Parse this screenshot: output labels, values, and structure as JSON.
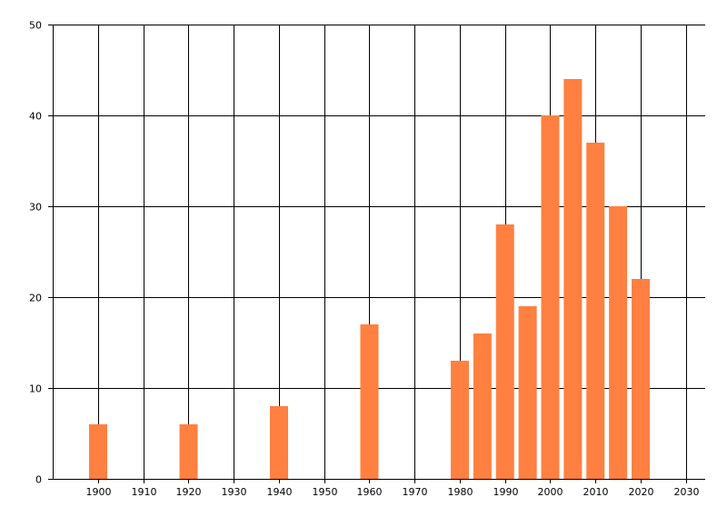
{
  "chart_data": {
    "type": "bar",
    "title": "",
    "xlabel": "",
    "ylabel": "",
    "x": [
      1900,
      1920,
      1940,
      1960,
      1980,
      1985,
      1990,
      1995,
      2000,
      2005,
      2010,
      2015,
      2020
    ],
    "values": [
      6,
      6,
      8,
      17,
      13,
      16,
      28,
      19,
      40,
      44,
      37,
      30,
      22
    ],
    "xlim": [
      1890,
      2035
    ],
    "ylim": [
      0,
      50
    ],
    "xticks": [
      1900,
      1910,
      1920,
      1930,
      1940,
      1950,
      1960,
      1970,
      1980,
      1990,
      2000,
      2010,
      2020,
      2030
    ],
    "yticks": [
      0,
      10,
      20,
      30,
      40,
      50
    ],
    "grid": true,
    "legend": "none",
    "bar_color": "#ff8040",
    "grid_color": "#000000"
  }
}
